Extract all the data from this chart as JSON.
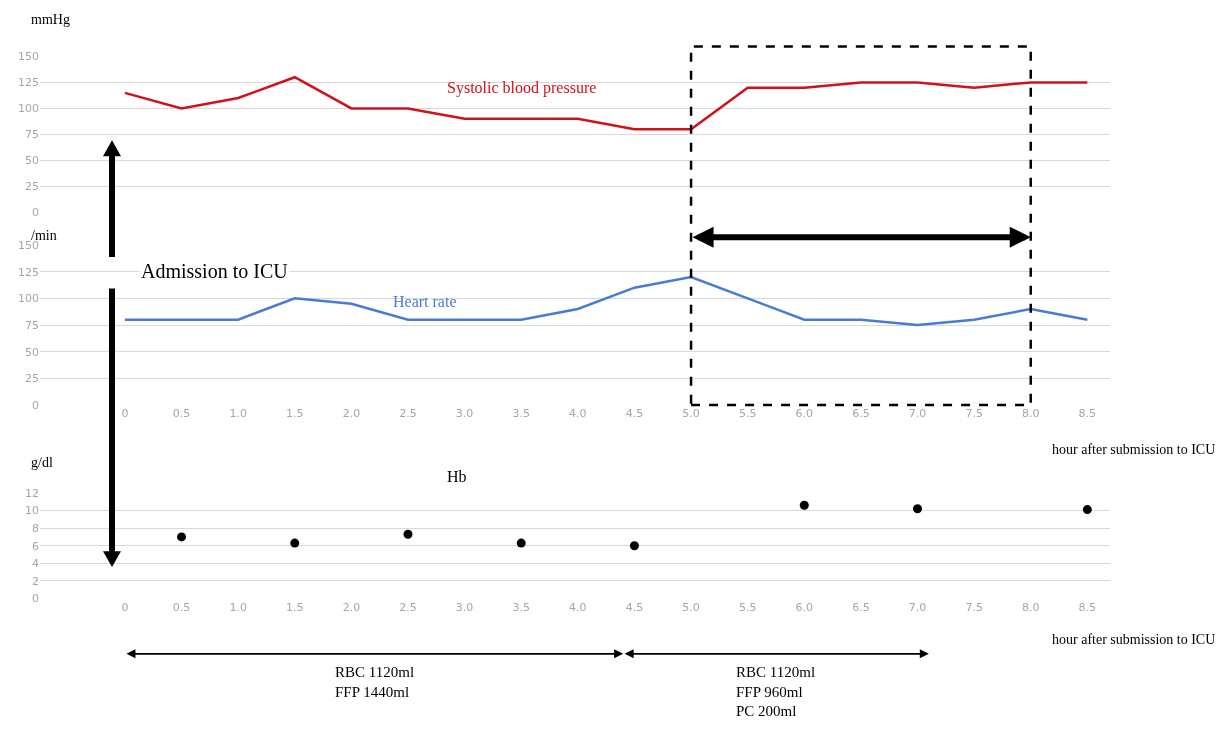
{
  "chart_data": [
    {
      "type": "line",
      "ylabel": "mmHg",
      "x": [
        0,
        0.5,
        1,
        1.5,
        2,
        2.5,
        3,
        3.5,
        4,
        4.5,
        5,
        5.5,
        6,
        6.5,
        7,
        7.5,
        8,
        8.5
      ],
      "series": [
        {
          "name": "Systolic blood pressure",
          "color": "#d0121b",
          "values": [
            115,
            100,
            110,
            130,
            100,
            100,
            90,
            90,
            90,
            80,
            80,
            120,
            120,
            125,
            125,
            120,
            125,
            125
          ]
        }
      ],
      "xlim": [
        -0.75,
        8.7
      ],
      "ylim": [
        0,
        150
      ],
      "yticks": [
        0,
        25,
        50,
        75,
        100,
        125,
        150
      ],
      "tick_labels": "y",
      "grid": "y",
      "marker": "none",
      "line_style": "solid",
      "annotations": [
        "Admission to ICU"
      ]
    },
    {
      "type": "line",
      "ylabel": "/min",
      "xlabel": "hour after submission to ICU",
      "x": [
        0,
        0.5,
        1,
        1.5,
        2,
        2.5,
        3,
        3.5,
        4,
        4.5,
        5,
        5.5,
        6,
        6.5,
        7,
        7.5,
        8,
        8.5
      ],
      "series": [
        {
          "name": "Heart rate",
          "color": "#4a7bd4",
          "values": [
            80,
            80,
            80,
            100,
            95,
            80,
            80,
            80,
            90,
            110,
            120,
            100,
            80,
            80,
            75,
            80,
            90,
            80
          ]
        }
      ],
      "xlim": [
        -0.75,
        8.7
      ],
      "ylim": [
        0,
        150
      ],
      "yticks": [
        0,
        25,
        50,
        75,
        100,
        125,
        150
      ],
      "xticks": [
        0,
        {
          "value": 0.5,
          "label": "0.5"
        },
        {
          "value": 1,
          "label": "1.0"
        },
        {
          "value": 1.5,
          "label": "1.5"
        },
        {
          "value": 2,
          "label": "2.0"
        },
        {
          "value": 2.5,
          "label": "2.5"
        },
        {
          "value": 3,
          "label": "3.0"
        },
        {
          "value": 3.5,
          "label": "3.5"
        },
        {
          "value": 4,
          "label": "4.0"
        },
        {
          "value": 4.5,
          "label": "4.5"
        },
        {
          "value": 5,
          "label": "5.0"
        },
        {
          "value": 5.5,
          "label": "5.5"
        },
        {
          "value": 6,
          "label": "6.0"
        },
        {
          "value": 6.5,
          "label": "6.5"
        },
        {
          "value": 7,
          "label": "7.0"
        },
        {
          "value": 7.5,
          "label": "7.5"
        },
        {
          "value": 8,
          "label": "8.0"
        },
        {
          "value": 8.5,
          "label": "8.5"
        }
      ],
      "grid": "y",
      "marker": "none",
      "line_style": "solid"
    },
    {
      "type": "scatter",
      "ylabel": "g/dl",
      "xlabel": "hour after submission to ICU",
      "x": [
        0.5,
        1.5,
        2.5,
        3.5,
        4.5,
        6,
        7,
        8.5
      ],
      "series": [
        {
          "name": "Hb",
          "color": "#000000",
          "values": [
            7,
            6.3,
            7.3,
            6.3,
            6,
            10.6,
            10.2,
            10.1
          ]
        }
      ],
      "xlim": [
        -0.75,
        8.7
      ],
      "ylim": [
        0,
        12
      ],
      "yticks": [
        0,
        2,
        4,
        6,
        8,
        10,
        12
      ],
      "xticks": [
        0,
        {
          "value": 0.5,
          "label": "0.5"
        },
        {
          "value": 1,
          "label": "1.0"
        },
        {
          "value": 1.5,
          "label": "1.5"
        },
        {
          "value": 2,
          "label": "2.0"
        },
        {
          "value": 2.5,
          "label": "2.5"
        },
        {
          "value": 3,
          "label": "3.0"
        },
        {
          "value": 3.5,
          "label": "3.5"
        },
        {
          "value": 4,
          "label": "4.0"
        },
        {
          "value": 4.5,
          "label": "4.5"
        },
        {
          "value": 5,
          "label": "5.0"
        },
        {
          "value": 5.5,
          "label": "5.5"
        },
        {
          "value": 6,
          "label": "6.0"
        },
        {
          "value": 6.5,
          "label": "6.5"
        },
        {
          "value": 7,
          "label": "7.0"
        },
        {
          "value": 7.5,
          "label": "7.5"
        },
        {
          "value": 8,
          "label": "8.0"
        },
        {
          "value": 8.5,
          "label": "8.5"
        }
      ],
      "grid": "y",
      "marker": "circle",
      "annotations": [
        "RBC 1120ml\nFFP 1440ml",
        "RBC 1120ml\nFFP 960ml\nPC 200ml"
      ]
    }
  ]
}
